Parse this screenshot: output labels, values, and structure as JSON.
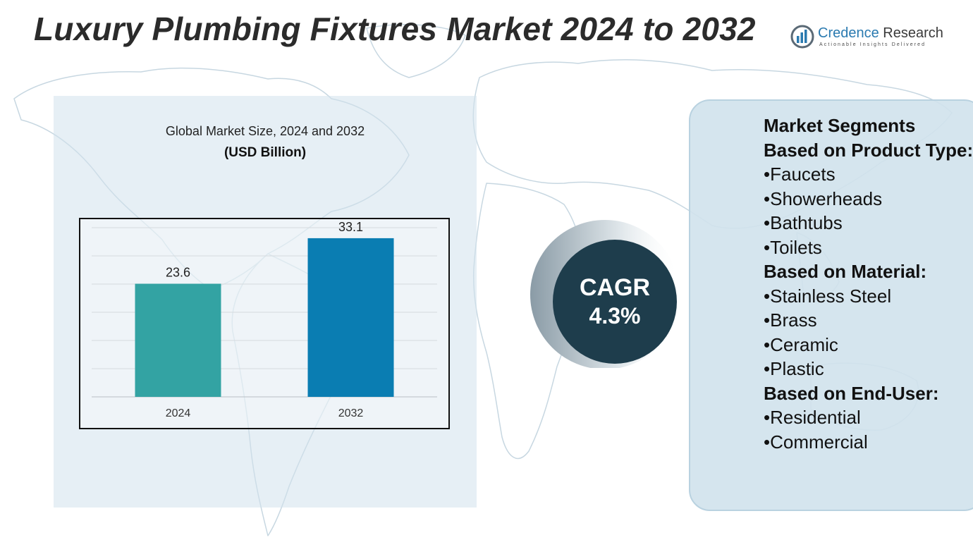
{
  "title": "Luxury Plumbing Fixtures Market 2024 to 2032",
  "logo": {
    "name_part1": "Credence",
    "name_part2": " Research",
    "tagline": "Actionable Insights Delivered",
    "icon": "credence-logo-icon"
  },
  "chart": {
    "title": "Global Market Size, 2024 and 2032",
    "unit": "(USD Billion)"
  },
  "chart_data": {
    "type": "bar",
    "title": "Global Market Size, 2024 and 2032",
    "ylabel": "",
    "xlabel": "",
    "categories": [
      "2024",
      "2032"
    ],
    "values": [
      23.6,
      33.1
    ],
    "value_labels": [
      "23.6",
      "33.1"
    ],
    "colors": [
      "#33a3a3",
      "#0a7db2"
    ],
    "ylim": [
      0,
      35
    ],
    "grid": true,
    "legend": "none"
  },
  "cagr": {
    "label": "CAGR",
    "value": "4.3%"
  },
  "segments": {
    "heading_main": "Market Segments",
    "groups": [
      {
        "heading": "Based on Product Type:",
        "items": [
          "Faucets",
          "Showerheads",
          "Bathtubs",
          "Toilets"
        ]
      },
      {
        "heading": "Based on Material:",
        "items": [
          "Stainless Steel",
          "Brass",
          "Ceramic",
          "Plastic"
        ]
      },
      {
        "heading": "Based on End-User:",
        "items": [
          "Residential",
          "Commercial"
        ]
      }
    ]
  },
  "colors": {
    "accent_teal": "#33a3a3",
    "accent_blue": "#0a7db2",
    "cagr_bg": "#1e3d4c",
    "panel_bg": "#d0e2ec"
  }
}
